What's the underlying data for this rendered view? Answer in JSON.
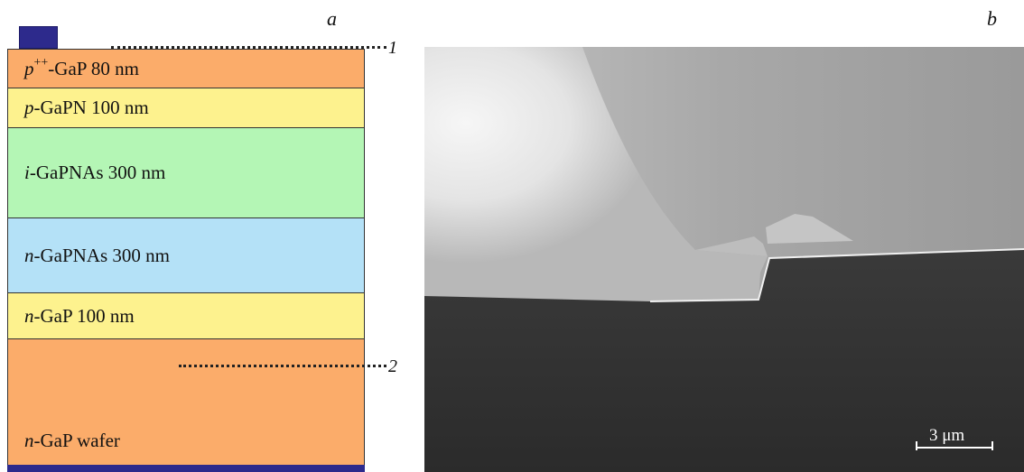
{
  "panels": {
    "a": "a",
    "b": "b"
  },
  "layers": [
    {
      "prefix": "p",
      "sup": "++",
      "suffix": "-GaP 80 nm",
      "color": "#fbac6a"
    },
    {
      "prefix": "p",
      "sup": "",
      "suffix": "-GaPN 100 nm",
      "color": "#fdf28e"
    },
    {
      "prefix": "i",
      "sup": "",
      "suffix": "-GaPNAs 300 nm",
      "color": "#b4f6b5"
    },
    {
      "prefix": "n",
      "sup": "",
      "suffix": "-GaPNAs 300 nm",
      "color": "#b4e1f7"
    },
    {
      "prefix": "n",
      "sup": "",
      "suffix": "-GaP 100 nm",
      "color": "#fdf28e"
    },
    {
      "prefix": "n",
      "sup": "",
      "suffix": "-GaP wafer",
      "color": "#fbac6a"
    }
  ],
  "markers": {
    "one": "1",
    "two": "2"
  },
  "contact_color": "#2d2a8c",
  "scale_bar": {
    "label": "3 μm"
  }
}
